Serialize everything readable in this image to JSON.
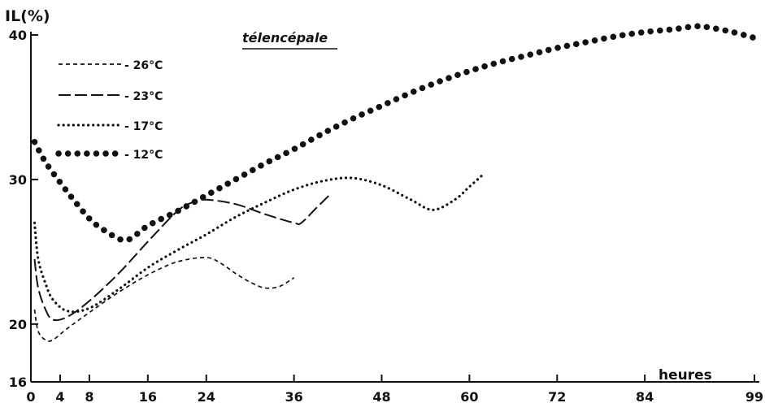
{
  "chart_data": {
    "type": "line",
    "title": "télencépale",
    "ylabel": "IL(%)",
    "xlabel": "heures",
    "xlim": [
      0,
      99
    ],
    "ylim": [
      16,
      40
    ],
    "x_ticks": [
      0,
      4,
      8,
      16,
      24,
      36,
      48,
      60,
      72,
      84,
      99
    ],
    "x_tick_labels": [
      "0",
      "4",
      "8",
      "16",
      "24",
      "36",
      "48",
      "60",
      "72",
      "84",
      "99"
    ],
    "y_ticks": [
      16,
      20,
      30,
      40
    ],
    "y_tick_labels": [
      "16",
      "20",
      "30",
      "40"
    ],
    "grid": false,
    "legend_position": "top-left",
    "series": [
      {
        "name": "26°C",
        "style": "short-dash",
        "x": [
          0.5,
          1,
          2,
          3,
          5,
          8,
          12,
          16,
          20,
          24,
          26,
          28,
          30,
          32,
          34,
          36
        ],
        "y": [
          21.0,
          19.5,
          18.9,
          18.9,
          19.7,
          20.8,
          22.2,
          23.4,
          24.3,
          24.6,
          24.2,
          23.5,
          22.9,
          22.5,
          22.6,
          23.2
        ]
      },
      {
        "name": "23°C",
        "style": "long-dash",
        "x": [
          0.5,
          1,
          2,
          3,
          5,
          8,
          12,
          16,
          20,
          22,
          24,
          28,
          32,
          36,
          37,
          39,
          41
        ],
        "y": [
          24.5,
          22.5,
          21.0,
          20.3,
          20.5,
          21.6,
          23.5,
          25.7,
          27.8,
          28.4,
          28.6,
          28.3,
          27.6,
          27.0,
          27.0,
          28.0,
          29.0
        ]
      },
      {
        "name": "17°C",
        "style": "dotted",
        "x": [
          0.5,
          1,
          2,
          3,
          5,
          8,
          12,
          16,
          20,
          24,
          28,
          32,
          36,
          40,
          44,
          48,
          52,
          55,
          58,
          60,
          62
        ],
        "y": [
          27.0,
          24.5,
          22.8,
          21.7,
          20.9,
          21.1,
          22.4,
          23.9,
          25.1,
          26.2,
          27.4,
          28.4,
          29.3,
          29.9,
          30.1,
          29.6,
          28.6,
          27.9,
          28.6,
          29.5,
          30.4
        ]
      },
      {
        "name": "12°C",
        "style": "heavy-dotted",
        "x": [
          0.5,
          2,
          4,
          6,
          8,
          10,
          13,
          16,
          20,
          24,
          28,
          32,
          36,
          40,
          44,
          48,
          52,
          56,
          60,
          64,
          68,
          72,
          76,
          80,
          84,
          88,
          91,
          93,
          96,
          99
        ],
        "y": [
          32.6,
          31.2,
          29.8,
          28.5,
          27.3,
          26.5,
          25.8,
          26.8,
          27.8,
          28.9,
          30.0,
          31.1,
          32.1,
          33.2,
          34.2,
          35.1,
          36.0,
          36.8,
          37.5,
          38.1,
          38.6,
          39.1,
          39.5,
          39.9,
          40.2,
          40.4,
          40.6,
          40.5,
          40.2,
          39.8
        ]
      }
    ]
  }
}
